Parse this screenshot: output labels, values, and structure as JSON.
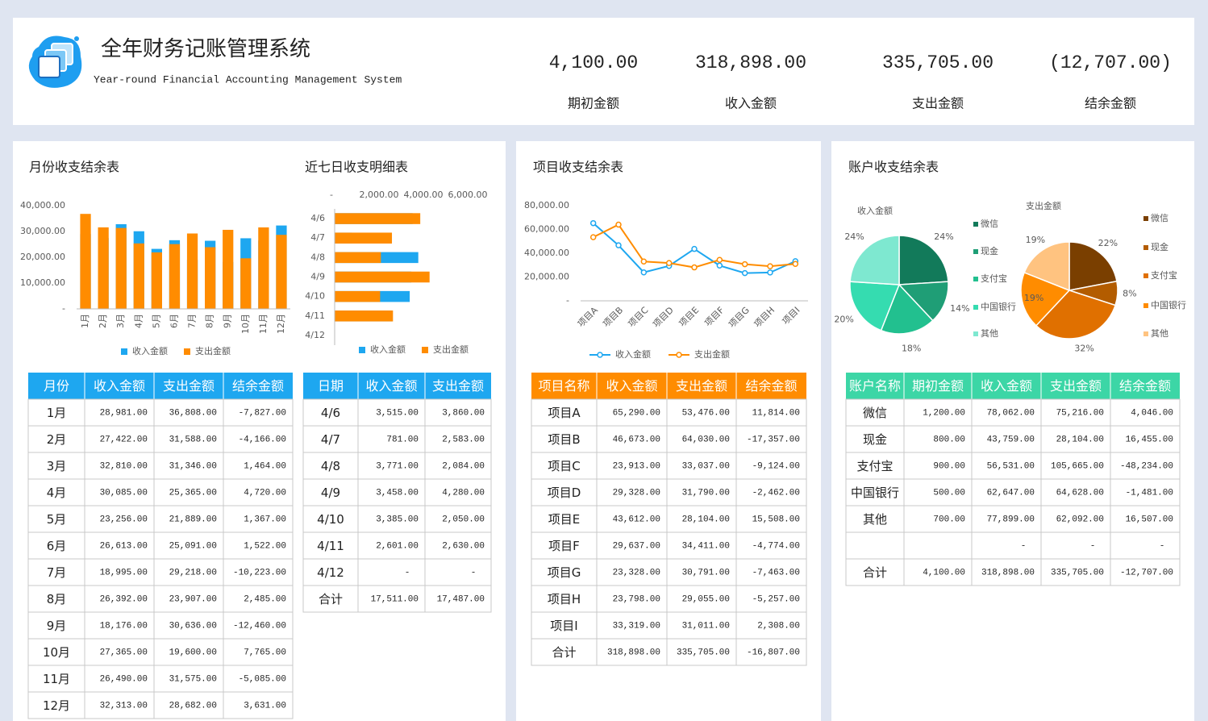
{
  "header": {
    "title": "全年财务记账管理系统",
    "subtitle": "Year-round Financial Accounting Management System",
    "kpis": [
      {
        "value": "4,100.00",
        "label": "期初金额",
        "color": "#3cc8a8"
      },
      {
        "value": "318,898.00",
        "label": "收入金额",
        "color": "#1ea7f0"
      },
      {
        "value": "335,705.00",
        "label": "支出金额",
        "color": "#ff8c00"
      },
      {
        "value": "(12,707.00)",
        "label": "结余金额",
        "color": "#e0101a"
      }
    ]
  },
  "account_panel": {
    "title": "账户收支结余表"
  },
  "chart_data": [
    {
      "type": "bar",
      "title": "月份收支结余表",
      "categories": [
        "1月",
        "2月",
        "3月",
        "4月",
        "5月",
        "6月",
        "7月",
        "8月",
        "9月",
        "10月",
        "11月",
        "12月"
      ],
      "series": [
        {
          "name": "收入金额",
          "color": "#1ea7f0",
          "values": [
            28981,
            27422,
            32810,
            30085,
            23256,
            26613,
            18995,
            26392,
            18176,
            27365,
            26490,
            32313
          ]
        },
        {
          "name": "支出金额",
          "color": "#ff8c00",
          "values": [
            36808,
            31588,
            31346,
            25365,
            21889,
            25091,
            29218,
            23907,
            30636,
            19600,
            31575,
            28682
          ]
        }
      ],
      "ylim": [
        0,
        40000
      ],
      "yticks": [
        {
          "value": 0,
          "label": "-"
        },
        {
          "value": 10000,
          "label": "10,000.00"
        },
        {
          "value": 20000,
          "label": "20,000.00"
        },
        {
          "value": 30000,
          "label": "30,000.00"
        },
        {
          "value": 40000,
          "label": "40,000.00"
        }
      ]
    },
    {
      "type": "barh",
      "title": "近七日收支明细表",
      "categories": [
        "4/6",
        "4/7",
        "4/8",
        "4/9",
        "4/10",
        "4/11",
        "4/12"
      ],
      "series": [
        {
          "name": "收入金额",
          "color": "#1ea7f0",
          "values": [
            3515,
            781,
            3771,
            3458,
            3385,
            2601,
            0
          ]
        },
        {
          "name": "支出金额",
          "color": "#ff8c00",
          "values": [
            3860,
            2583,
            2084,
            4280,
            2050,
            2630,
            0
          ]
        }
      ],
      "xlim": [
        0,
        6000
      ],
      "xticks": [
        {
          "value": 0,
          "label": "-"
        },
        {
          "value": 2000,
          "label": "2,000.00"
        },
        {
          "value": 4000,
          "label": "4,000.00"
        },
        {
          "value": 6000,
          "label": "6,000.00"
        }
      ]
    },
    {
      "type": "line",
      "title": "项目收支结余表",
      "categories": [
        "项目A",
        "项目B",
        "项目C",
        "项目D",
        "项目E",
        "项目F",
        "项目G",
        "项目H",
        "项目I"
      ],
      "series": [
        {
          "name": "收入金额",
          "color": "#1ea7f0",
          "values": [
            65290,
            46673,
            23913,
            29328,
            43612,
            29637,
            23328,
            23798,
            33319
          ]
        },
        {
          "name": "支出金额",
          "color": "#ff8c00",
          "values": [
            53476,
            64030,
            33037,
            31790,
            28104,
            34411,
            30791,
            29055,
            31011
          ]
        }
      ],
      "ylim": [
        0,
        80000
      ],
      "yticks": [
        {
          "value": 0,
          "label": "-"
        },
        {
          "value": 20000,
          "label": "20,000.00"
        },
        {
          "value": 40000,
          "label": "40,000.00"
        },
        {
          "value": 60000,
          "label": "60,000.00"
        },
        {
          "value": 80000,
          "label": "80,000.00"
        }
      ]
    },
    {
      "type": "pie",
      "title": "收入金额",
      "categories": [
        "微信",
        "现金",
        "支付宝",
        "中国银行",
        "其他"
      ],
      "values": [
        24,
        14,
        18,
        20,
        24
      ],
      "value_labels": [
        "24%",
        "14%",
        "18%",
        "20%",
        "24%"
      ],
      "colors": [
        "#127a5a",
        "#1f9e76",
        "#22c08f",
        "#35dcb0",
        "#7ee8d0"
      ]
    },
    {
      "type": "pie",
      "title": "支出金额",
      "categories": [
        "微信",
        "现金",
        "支付宝",
        "中国银行",
        "其他"
      ],
      "values": [
        22,
        8,
        32,
        19,
        19
      ],
      "value_labels": [
        "22%",
        "8%",
        "32%",
        "19%",
        "19%"
      ],
      "colors": [
        "#7a3f00",
        "#b35c00",
        "#e07000",
        "#ff8c00",
        "#ffc380"
      ]
    }
  ],
  "tables": [
    {
      "header_color": "#1ea7f0",
      "header": [
        "月份",
        "收入金额",
        "支出金额",
        "结余金额"
      ],
      "rows": [
        [
          "1月",
          "28,981.00",
          "36,808.00",
          "-7,827.00"
        ],
        [
          "2月",
          "27,422.00",
          "31,588.00",
          "-4,166.00"
        ],
        [
          "3月",
          "32,810.00",
          "31,346.00",
          "1,464.00"
        ],
        [
          "4月",
          "30,085.00",
          "25,365.00",
          "4,720.00"
        ],
        [
          "5月",
          "23,256.00",
          "21,889.00",
          "1,367.00"
        ],
        [
          "6月",
          "26,613.00",
          "25,091.00",
          "1,522.00"
        ],
        [
          "7月",
          "18,995.00",
          "29,218.00",
          "-10,223.00"
        ],
        [
          "8月",
          "26,392.00",
          "23,907.00",
          "2,485.00"
        ],
        [
          "9月",
          "18,176.00",
          "30,636.00",
          "-12,460.00"
        ],
        [
          "10月",
          "27,365.00",
          "19,600.00",
          "7,765.00"
        ],
        [
          "11月",
          "26,490.00",
          "31,575.00",
          "-5,085.00"
        ],
        [
          "12月",
          "32,313.00",
          "28,682.00",
          "3,631.00"
        ]
      ]
    },
    {
      "header_color": "#1ea7f0",
      "header": [
        "日期",
        "收入金额",
        "支出金额"
      ],
      "rows": [
        [
          "4/6",
          "3,515.00",
          "3,860.00"
        ],
        [
          "4/7",
          "781.00",
          "2,583.00"
        ],
        [
          "4/8",
          "3,771.00",
          "2,084.00"
        ],
        [
          "4/9",
          "3,458.00",
          "4,280.00"
        ],
        [
          "4/10",
          "3,385.00",
          "2,050.00"
        ],
        [
          "4/11",
          "2,601.00",
          "2,630.00"
        ],
        [
          "4/12",
          "-",
          "-"
        ],
        [
          "合计",
          "17,511.00",
          "17,487.00"
        ]
      ]
    },
    {
      "header_color": "#ff8c00",
      "header": [
        "项目名称",
        "收入金额",
        "支出金额",
        "结余金额"
      ],
      "rows": [
        [
          "项目A",
          "65,290.00",
          "53,476.00",
          "11,814.00"
        ],
        [
          "项目B",
          "46,673.00",
          "64,030.00",
          "-17,357.00"
        ],
        [
          "项目C",
          "23,913.00",
          "33,037.00",
          "-9,124.00"
        ],
        [
          "项目D",
          "29,328.00",
          "31,790.00",
          "-2,462.00"
        ],
        [
          "项目E",
          "43,612.00",
          "28,104.00",
          "15,508.00"
        ],
        [
          "项目F",
          "29,637.00",
          "34,411.00",
          "-4,774.00"
        ],
        [
          "项目G",
          "23,328.00",
          "30,791.00",
          "-7,463.00"
        ],
        [
          "项目H",
          "23,798.00",
          "29,055.00",
          "-5,257.00"
        ],
        [
          "项目I",
          "33,319.00",
          "31,011.00",
          "2,308.00"
        ],
        [
          "合计",
          "318,898.00",
          "335,705.00",
          "-16,807.00"
        ]
      ]
    },
    {
      "header_color": "#3cd6a6",
      "header": [
        "账户名称",
        "期初金额",
        "收入金额",
        "支出金额",
        "结余金额"
      ],
      "rows": [
        [
          "微信",
          "1,200.00",
          "78,062.00",
          "75,216.00",
          "4,046.00"
        ],
        [
          "现金",
          "800.00",
          "43,759.00",
          "28,104.00",
          "16,455.00"
        ],
        [
          "支付宝",
          "900.00",
          "56,531.00",
          "105,665.00",
          "-48,234.00"
        ],
        [
          "中国银行",
          "500.00",
          "62,647.00",
          "64,628.00",
          "-1,481.00"
        ],
        [
          "其他",
          "700.00",
          "77,899.00",
          "62,092.00",
          "16,507.00"
        ],
        [
          null,
          null,
          "-",
          "-",
          "-"
        ],
        [
          "合计",
          "4,100.00",
          "318,898.00",
          "335,705.00",
          "-12,707.00"
        ]
      ]
    }
  ]
}
